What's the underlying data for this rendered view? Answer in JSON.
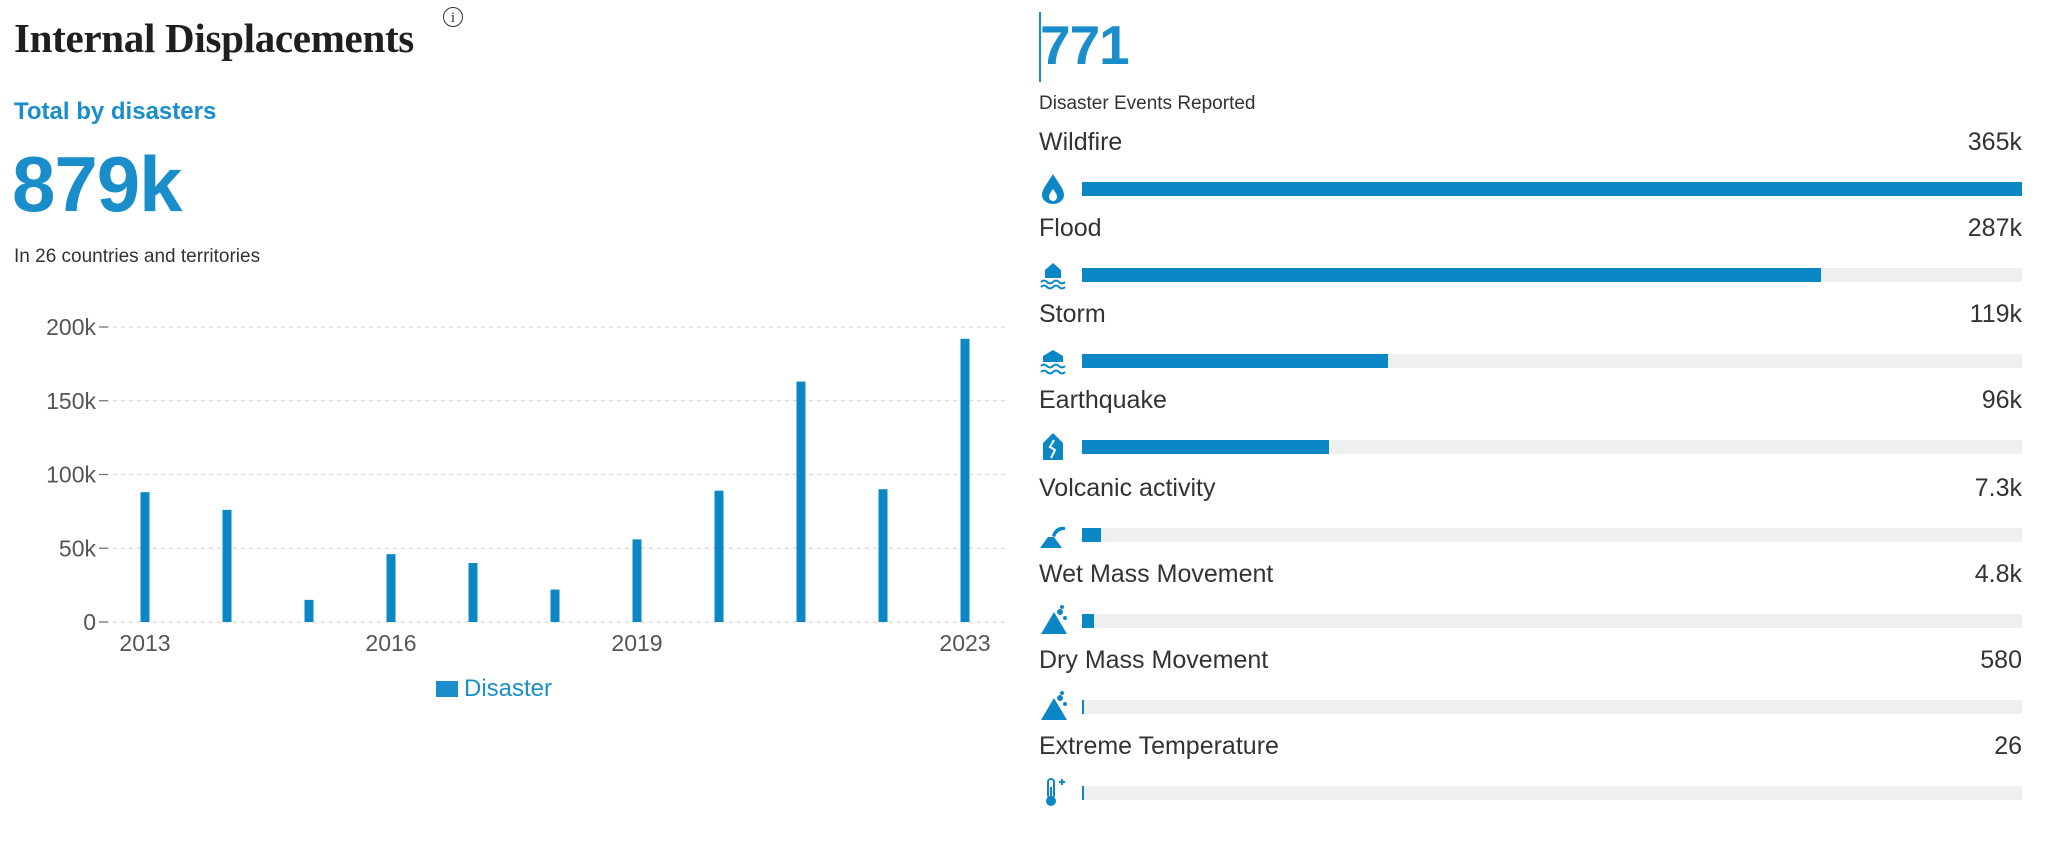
{
  "header": {
    "title": "Internal Displacements",
    "info_icon": "info-circle-icon",
    "subheading": "Total by disasters",
    "total": "879k",
    "caption": "In 26 countries and territories"
  },
  "colors": {
    "accent": "#1a8dcb",
    "bar": "#0c87c6",
    "track": "#efefef"
  },
  "chart_data": {
    "type": "bar",
    "x": [
      2013,
      2014,
      2015,
      2016,
      2017,
      2018,
      2019,
      2020,
      2021,
      2022,
      2023
    ],
    "x_tick_labels": [
      "2013",
      "2016",
      "2019",
      "2023"
    ],
    "y_tick_labels": [
      "0",
      "50k",
      "100k",
      "150k",
      "200k"
    ],
    "y_ticks": [
      0,
      50000,
      100000,
      150000,
      200000
    ],
    "ylim": [
      0,
      200000
    ],
    "series": [
      {
        "name": "Disaster",
        "values": [
          88000,
          76000,
          15000,
          46000,
          40000,
          22000,
          56000,
          89000,
          163000,
          90000,
          192000
        ]
      }
    ],
    "grid": "horizontal dashed",
    "legend": "bottom-center"
  },
  "summary": {
    "events_count": "771",
    "events_label": "Disaster Events Reported",
    "max_value": 365000,
    "rows": [
      {
        "label": "Wildfire",
        "value_text": "365k",
        "value": 365000,
        "icon": "wildfire-icon"
      },
      {
        "label": "Flood",
        "value_text": "287k",
        "value": 287000,
        "icon": "flood-icon"
      },
      {
        "label": "Storm",
        "value_text": "119k",
        "value": 119000,
        "icon": "storm-icon"
      },
      {
        "label": "Earthquake",
        "value_text": "96k",
        "value": 96000,
        "icon": "earthquake-icon"
      },
      {
        "label": "Volcanic activity",
        "value_text": "7.3k",
        "value": 7300,
        "icon": "volcano-icon"
      },
      {
        "label": "Wet Mass Movement",
        "value_text": "4.8k",
        "value": 4800,
        "icon": "wet-mass-movement-icon"
      },
      {
        "label": "Dry Mass Movement",
        "value_text": "580",
        "value": 580,
        "icon": "dry-mass-movement-icon"
      },
      {
        "label": "Extreme Temperature",
        "value_text": "26",
        "value": 26,
        "icon": "thermometer-icon"
      }
    ]
  }
}
